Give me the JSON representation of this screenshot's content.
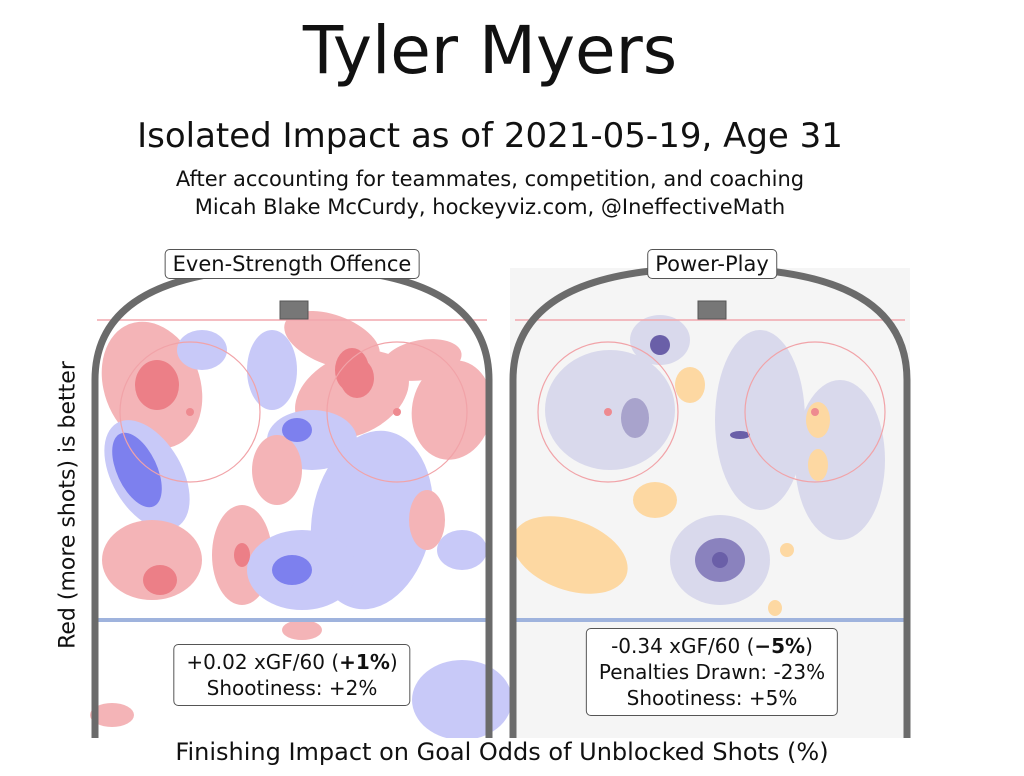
{
  "title": "Tyler Myers",
  "subtitle": "Isolated Impact as of 2021-05-19, Age 31",
  "note1": "After accounting for teammates, competition, and coaching",
  "note2": "Micah Blake McCurdy, hockeyviz.com, @IneffectiveMath",
  "chart_data": {
    "type": "heatmap",
    "ylabel": "Red (more shots) is better",
    "xlabel": "Finishing Impact on Goal Odds of Unblocked Shots (%)",
    "panels": [
      {
        "title": "Even-Strength Offence",
        "xgf": "+0.02 xGF/60 (",
        "pct": "+1%",
        "close": ")",
        "shootiness": "Shootiness: +2%"
      },
      {
        "title": "Power-Play",
        "xgf": "-0.34 xGF/60 (",
        "pct": "−5%",
        "close": ")",
        "penalties": "Penalties Drawn: -23%",
        "shootiness": "Shootiness: +5%"
      }
    ],
    "colors": {
      "es_pos": "#f4b4b7",
      "es_pos_dark": "#ec7f87",
      "es_neg": "#c8c9f8",
      "es_neg_dark": "#7d80ee",
      "pp_neg": "#d9d9ec",
      "pp_neg_dark": "#6a5fa8",
      "pp_pos": "#fdd8a2"
    }
  }
}
